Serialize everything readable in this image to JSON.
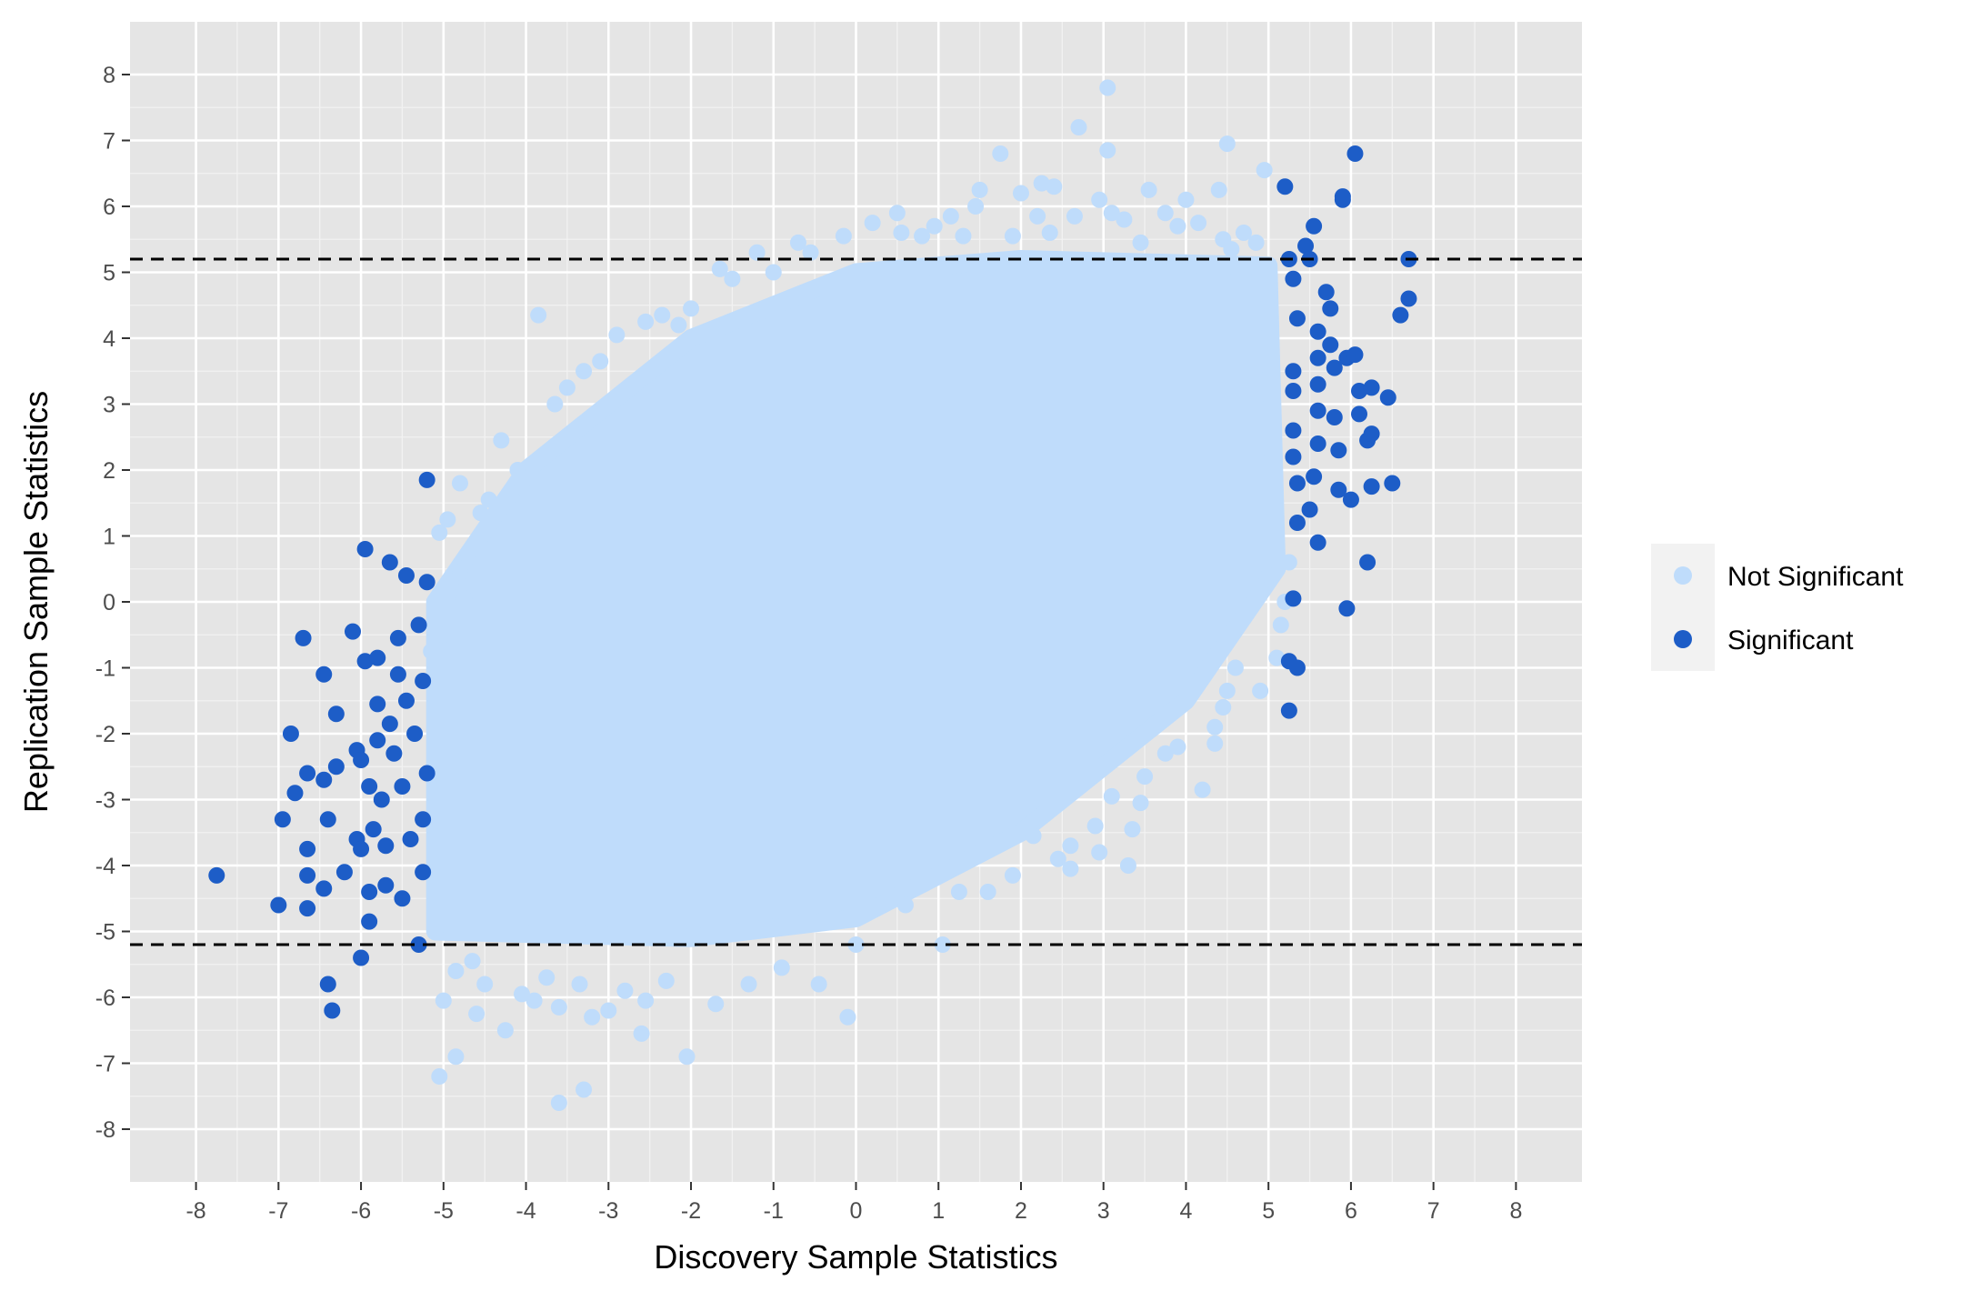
{
  "chart_data": {
    "type": "scatter",
    "title": "",
    "xlabel": "Discovery Sample Statistics",
    "ylabel": "Replication Sample Statistics",
    "xlim": [
      -8.8,
      8.8
    ],
    "ylim": [
      -8.8,
      8.8
    ],
    "x_ticks": [
      -8,
      -7,
      -6,
      -5,
      -4,
      -3,
      -2,
      -1,
      0,
      1,
      2,
      3,
      4,
      5,
      6,
      7,
      8
    ],
    "y_ticks": [
      -8,
      -7,
      -6,
      -5,
      -4,
      -3,
      -2,
      -1,
      0,
      1,
      2,
      3,
      4,
      5,
      6,
      7,
      8
    ],
    "grid": true,
    "legend_position": "right",
    "legend_title": "",
    "reference_lines": [
      {
        "axis": "y",
        "value": 5.2,
        "style": "dashed",
        "color": "#000000"
      },
      {
        "axis": "y",
        "value": -5.2,
        "style": "dashed",
        "color": "#000000"
      }
    ],
    "dense_cloud": {
      "series": "Not Significant",
      "description_points": [
        [
          -5.1,
          -5.0
        ],
        [
          -5.1,
          0.0
        ],
        [
          -4.0,
          2.0
        ],
        [
          -2.0,
          4.0
        ],
        [
          0.0,
          5.0
        ],
        [
          2.0,
          5.2
        ],
        [
          5.0,
          5.1
        ],
        [
          5.1,
          0.5
        ],
        [
          4.0,
          -1.5
        ],
        [
          2.0,
          -3.5
        ],
        [
          0.0,
          -4.8
        ],
        [
          -2.0,
          -5.1
        ]
      ]
    },
    "series": [
      {
        "name": "Not Significant",
        "color": "#bfdcfb",
        "points": [
          [
            3.05,
            7.8
          ],
          [
            2.7,
            7.2
          ],
          [
            4.5,
            6.95
          ],
          [
            3.05,
            6.85
          ],
          [
            1.75,
            6.8
          ],
          [
            4.95,
            6.55
          ],
          [
            2.25,
            6.35
          ],
          [
            1.5,
            6.25
          ],
          [
            3.55,
            6.25
          ],
          [
            4.4,
            6.25
          ],
          [
            2.95,
            6.1
          ],
          [
            4.0,
            6.1
          ],
          [
            1.45,
            6.0
          ],
          [
            2.2,
            5.85
          ],
          [
            2.65,
            5.85
          ],
          [
            3.25,
            5.8
          ],
          [
            0.2,
            5.75
          ],
          [
            0.55,
            5.6
          ],
          [
            -0.15,
            5.55
          ],
          [
            4.45,
            5.5
          ],
          [
            4.85,
            5.45
          ],
          [
            -0.7,
            5.45
          ],
          [
            -1.2,
            5.3
          ],
          [
            0.95,
            5.7
          ],
          [
            -1.65,
            5.05
          ],
          [
            -2.0,
            4.45
          ],
          [
            -2.35,
            4.35
          ],
          [
            -3.85,
            4.35
          ],
          [
            -2.55,
            4.25
          ],
          [
            -3.3,
            3.5
          ],
          [
            -3.5,
            3.25
          ],
          [
            -3.65,
            3.0
          ],
          [
            -4.3,
            2.45
          ],
          [
            -4.1,
            2.0
          ],
          [
            -4.05,
            1.75
          ],
          [
            -4.45,
            1.55
          ],
          [
            -4.55,
            1.35
          ],
          [
            -4.8,
            1.8
          ],
          [
            -4.95,
            1.25
          ],
          [
            -4.7,
            0.7
          ],
          [
            -4.8,
            0.45
          ],
          [
            -5.05,
            1.05
          ],
          [
            -4.75,
            0.05
          ],
          [
            -5.0,
            -0.5
          ],
          [
            -5.15,
            -0.75
          ],
          [
            -4.95,
            -1.2
          ],
          [
            -5.05,
            -4.9
          ],
          [
            -4.65,
            -5.45
          ],
          [
            -4.85,
            -5.6
          ],
          [
            -5.0,
            -6.05
          ],
          [
            -4.5,
            -5.8
          ],
          [
            -4.6,
            -6.25
          ],
          [
            -4.25,
            -6.5
          ],
          [
            -4.05,
            -5.95
          ],
          [
            -3.9,
            -6.05
          ],
          [
            -3.75,
            -5.7
          ],
          [
            -3.6,
            -6.15
          ],
          [
            -3.35,
            -5.8
          ],
          [
            -3.2,
            -6.3
          ],
          [
            -3.0,
            -6.2
          ],
          [
            -2.8,
            -5.9
          ],
          [
            -2.6,
            -6.55
          ],
          [
            -2.55,
            -6.05
          ],
          [
            -2.3,
            -5.75
          ],
          [
            -2.05,
            -6.9
          ],
          [
            -1.7,
            -6.1
          ],
          [
            -1.3,
            -5.8
          ],
          [
            -0.9,
            -5.55
          ],
          [
            -0.45,
            -5.8
          ],
          [
            -0.1,
            -6.3
          ],
          [
            -3.3,
            -7.4
          ],
          [
            -3.6,
            -7.6
          ],
          [
            -4.85,
            -6.9
          ],
          [
            -5.05,
            -7.2
          ],
          [
            0.0,
            -5.2
          ],
          [
            1.05,
            -5.2
          ],
          [
            0.6,
            -4.6
          ],
          [
            1.25,
            -4.4
          ],
          [
            1.6,
            -4.4
          ],
          [
            1.9,
            -4.15
          ],
          [
            2.15,
            -3.55
          ],
          [
            2.45,
            -3.9
          ],
          [
            2.6,
            -3.7
          ],
          [
            2.6,
            -4.05
          ],
          [
            2.95,
            -3.8
          ],
          [
            2.9,
            -3.4
          ],
          [
            3.1,
            -2.95
          ],
          [
            3.35,
            -3.45
          ],
          [
            3.45,
            -3.05
          ],
          [
            3.5,
            -2.65
          ],
          [
            3.3,
            -4.0
          ],
          [
            3.75,
            -2.3
          ],
          [
            3.9,
            -2.2
          ],
          [
            4.2,
            -2.85
          ],
          [
            4.35,
            -2.15
          ],
          [
            4.35,
            -1.9
          ],
          [
            4.45,
            -1.6
          ],
          [
            4.5,
            -1.35
          ],
          [
            4.6,
            -1.0
          ],
          [
            4.9,
            -1.35
          ],
          [
            5.1,
            -0.85
          ],
          [
            5.15,
            -0.35
          ],
          [
            5.2,
            0.0
          ],
          [
            5.0,
            0.4
          ],
          [
            5.25,
            0.6
          ],
          [
            0.8,
            5.55
          ],
          [
            1.3,
            5.55
          ],
          [
            1.9,
            5.55
          ],
          [
            3.1,
            5.9
          ],
          [
            3.45,
            5.45
          ],
          [
            3.9,
            5.7
          ],
          [
            4.15,
            5.75
          ],
          [
            2.35,
            5.6
          ],
          [
            -1.5,
            4.9
          ],
          [
            -2.9,
            4.05
          ],
          [
            -2.15,
            4.2
          ],
          [
            -3.1,
            3.65
          ],
          [
            -1.0,
            5.0
          ],
          [
            -0.55,
            5.3
          ],
          [
            0.5,
            5.9
          ],
          [
            4.55,
            5.35
          ],
          [
            4.7,
            5.6
          ],
          [
            3.75,
            5.9
          ],
          [
            1.15,
            5.85
          ],
          [
            2.0,
            6.2
          ],
          [
            2.4,
            6.3
          ]
        ]
      },
      {
        "name": "Significant",
        "color": "#1d5dc7",
        "points": [
          [
            -7.75,
            -4.15
          ],
          [
            -7.0,
            -4.6
          ],
          [
            -6.95,
            -3.3
          ],
          [
            -6.85,
            -2.0
          ],
          [
            -6.8,
            -2.9
          ],
          [
            -6.65,
            -4.15
          ],
          [
            -6.65,
            -4.65
          ],
          [
            -6.65,
            -3.75
          ],
          [
            -6.65,
            -2.6
          ],
          [
            -6.7,
            -0.55
          ],
          [
            -6.45,
            -1.1
          ],
          [
            -6.45,
            -2.7
          ],
          [
            -6.45,
            -4.35
          ],
          [
            -6.4,
            -3.3
          ],
          [
            -6.4,
            -5.8
          ],
          [
            -6.35,
            -6.2
          ],
          [
            -6.3,
            -2.5
          ],
          [
            -6.3,
            -1.7
          ],
          [
            -6.2,
            -4.1
          ],
          [
            -6.1,
            -0.45
          ],
          [
            -6.05,
            -2.25
          ],
          [
            -6.05,
            -3.6
          ],
          [
            -6.0,
            -2.4
          ],
          [
            -6.0,
            -3.75
          ],
          [
            -6.0,
            -5.4
          ],
          [
            -5.95,
            0.8
          ],
          [
            -5.95,
            -0.9
          ],
          [
            -5.9,
            -2.8
          ],
          [
            -5.9,
            -4.4
          ],
          [
            -5.9,
            -4.85
          ],
          [
            -5.85,
            -3.45
          ],
          [
            -5.8,
            -0.85
          ],
          [
            -5.8,
            -2.1
          ],
          [
            -5.8,
            -1.55
          ],
          [
            -5.75,
            -3.0
          ],
          [
            -5.7,
            -3.7
          ],
          [
            -5.7,
            -4.3
          ],
          [
            -5.65,
            0.6
          ],
          [
            -5.65,
            -1.85
          ],
          [
            -5.6,
            -2.3
          ],
          [
            -5.55,
            -0.55
          ],
          [
            -5.55,
            -1.1
          ],
          [
            -5.5,
            -2.8
          ],
          [
            -5.5,
            -4.5
          ],
          [
            -5.45,
            0.4
          ],
          [
            -5.45,
            -1.5
          ],
          [
            -5.4,
            -3.6
          ],
          [
            -5.35,
            -2.0
          ],
          [
            -5.3,
            -0.35
          ],
          [
            -5.3,
            -5.2
          ],
          [
            -5.25,
            -1.2
          ],
          [
            -5.25,
            -3.3
          ],
          [
            -5.2,
            0.3
          ],
          [
            -5.2,
            1.85
          ],
          [
            -5.2,
            -2.6
          ],
          [
            -5.25,
            -4.1
          ],
          [
            5.2,
            6.3
          ],
          [
            5.25,
            5.2
          ],
          [
            5.3,
            4.9
          ],
          [
            5.35,
            4.3
          ],
          [
            5.3,
            3.5
          ],
          [
            5.3,
            3.2
          ],
          [
            5.3,
            2.6
          ],
          [
            5.3,
            2.2
          ],
          [
            5.35,
            1.8
          ],
          [
            5.35,
            1.2
          ],
          [
            5.3,
            0.05
          ],
          [
            5.25,
            -0.9
          ],
          [
            5.35,
            -1.0
          ],
          [
            5.25,
            -1.65
          ],
          [
            5.45,
            5.4
          ],
          [
            5.5,
            5.2
          ],
          [
            5.55,
            5.7
          ],
          [
            5.6,
            4.1
          ],
          [
            5.6,
            3.7
          ],
          [
            5.6,
            3.3
          ],
          [
            5.6,
            2.9
          ],
          [
            5.6,
            2.4
          ],
          [
            5.55,
            1.9
          ],
          [
            5.5,
            1.4
          ],
          [
            5.6,
            0.9
          ],
          [
            5.7,
            4.7
          ],
          [
            5.75,
            4.45
          ],
          [
            5.75,
            3.9
          ],
          [
            5.8,
            3.55
          ],
          [
            5.8,
            2.8
          ],
          [
            5.85,
            2.3
          ],
          [
            5.85,
            1.7
          ],
          [
            5.9,
            6.1
          ],
          [
            5.9,
            6.15
          ],
          [
            5.95,
            3.7
          ],
          [
            5.95,
            -0.1
          ],
          [
            6.0,
            1.55
          ],
          [
            6.05,
            6.8
          ],
          [
            6.05,
            3.75
          ],
          [
            6.1,
            3.2
          ],
          [
            6.1,
            2.85
          ],
          [
            6.2,
            0.6
          ],
          [
            6.2,
            2.45
          ],
          [
            6.25,
            3.25
          ],
          [
            6.25,
            2.55
          ],
          [
            6.25,
            1.75
          ],
          [
            6.45,
            3.1
          ],
          [
            6.5,
            1.8
          ],
          [
            6.6,
            4.35
          ],
          [
            6.7,
            5.2
          ],
          [
            6.7,
            4.6
          ]
        ]
      }
    ]
  }
}
